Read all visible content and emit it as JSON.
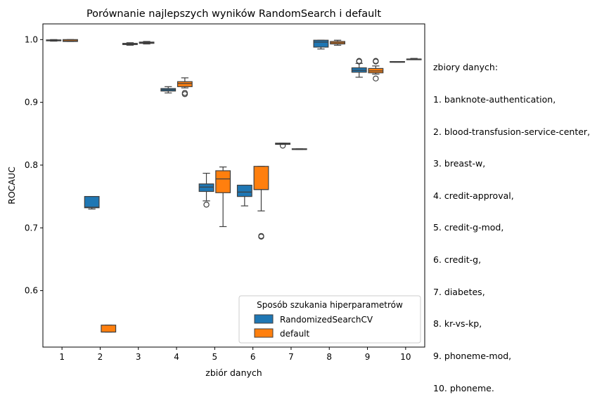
{
  "chart_data": {
    "type": "box",
    "title": "Porównanie najlepszych wyników RandomSearch i default",
    "xlabel": "zbiór danych",
    "ylabel": "ROCAUC",
    "categories": [
      "1",
      "2",
      "3",
      "4",
      "5",
      "6",
      "7",
      "8",
      "9",
      "10"
    ],
    "ylim": [
      0.51,
      1.025
    ],
    "yticks": [
      0.6,
      0.7,
      0.8,
      0.9,
      1.0
    ],
    "ytick_labels": [
      "0.6",
      "0.7",
      "0.8",
      "0.9",
      "1.0"
    ],
    "grid": false,
    "legend": {
      "title": "Sposób szukania hiperparametrów",
      "placement": "lower-right"
    },
    "series": [
      {
        "name": "RandomizedSearchCV",
        "color": "#1f77b4",
        "boxes": [
          {
            "category": "1",
            "whislo": 0.9975,
            "q1": 0.998,
            "median": 0.999,
            "q3": 0.9995,
            "whishi": 1.0,
            "fliers": []
          },
          {
            "category": "2",
            "whislo": 0.73,
            "q1": 0.732,
            "median": 0.733,
            "q3": 0.75,
            "whishi": 0.75,
            "fliers": []
          },
          {
            "category": "3",
            "whislo": 0.991,
            "q1": 0.992,
            "median": 0.993,
            "q3": 0.994,
            "whishi": 0.995,
            "fliers": []
          },
          {
            "category": "4",
            "whislo": 0.915,
            "q1": 0.918,
            "median": 0.92,
            "q3": 0.922,
            "whishi": 0.925,
            "fliers": []
          },
          {
            "category": "5",
            "whislo": 0.743,
            "q1": 0.758,
            "median": 0.765,
            "q3": 0.77,
            "whishi": 0.787,
            "fliers": [
              0.737
            ]
          },
          {
            "category": "6",
            "whislo": 0.735,
            "q1": 0.75,
            "median": 0.757,
            "q3": 0.768,
            "whishi": 0.768,
            "fliers": []
          },
          {
            "category": "7",
            "whislo": 0.833,
            "q1": 0.833,
            "median": 0.834,
            "q3": 0.835,
            "whishi": 0.835,
            "fliers": [
              0.831
            ]
          },
          {
            "category": "8",
            "whislo": 0.985,
            "q1": 0.988,
            "median": 0.996,
            "q3": 0.999,
            "whishi": 0.999,
            "fliers": []
          },
          {
            "category": "9",
            "whislo": 0.94,
            "q1": 0.948,
            "median": 0.951,
            "q3": 0.955,
            "whishi": 0.962,
            "fliers": [
              0.965,
              0.966
            ]
          },
          {
            "category": "10",
            "whislo": 0.964,
            "q1": 0.964,
            "median": 0.964,
            "q3": 0.965,
            "whishi": 0.965,
            "fliers": []
          }
        ]
      },
      {
        "name": "default",
        "color": "#ff7f0e",
        "boxes": [
          {
            "category": "1",
            "whislo": 0.997,
            "q1": 0.997,
            "median": 0.998,
            "q3": 1.0,
            "whishi": 1.0,
            "fliers": []
          },
          {
            "category": "2",
            "whislo": 0.534,
            "q1": 0.534,
            "median": 0.534,
            "q3": 0.545,
            "whishi": 0.545,
            "fliers": []
          },
          {
            "category": "3",
            "whislo": 0.993,
            "q1": 0.994,
            "median": 0.995,
            "q3": 0.996,
            "whishi": 0.997,
            "fliers": []
          },
          {
            "category": "4",
            "whislo": 0.923,
            "q1": 0.925,
            "median": 0.93,
            "q3": 0.933,
            "whishi": 0.939,
            "fliers": [
              0.913,
              0.915
            ]
          },
          {
            "category": "5",
            "whislo": 0.702,
            "q1": 0.756,
            "median": 0.778,
            "q3": 0.791,
            "whishi": 0.797,
            "fliers": []
          },
          {
            "category": "6",
            "whislo": 0.727,
            "q1": 0.761,
            "median": 0.761,
            "q3": 0.798,
            "whishi": 0.798,
            "fliers": [
              0.686,
              0.687
            ]
          },
          {
            "category": "7",
            "whislo": 0.825,
            "q1": 0.825,
            "median": 0.825,
            "q3": 0.826,
            "whishi": 0.826,
            "fliers": []
          },
          {
            "category": "8",
            "whislo": 0.991,
            "q1": 0.993,
            "median": 0.995,
            "q3": 0.997,
            "whishi": 0.999,
            "fliers": []
          },
          {
            "category": "9",
            "whislo": 0.945,
            "q1": 0.947,
            "median": 0.95,
            "q3": 0.954,
            "whishi": 0.958,
            "fliers": [
              0.938,
              0.965,
              0.966
            ]
          },
          {
            "category": "10",
            "whislo": 0.968,
            "q1": 0.969,
            "median": 0.969,
            "q3": 0.969,
            "whishi": 0.97,
            "fliers": []
          }
        ]
      }
    ]
  },
  "side_note": {
    "title": "zbiory danych:",
    "items": [
      "1. banknote-authentication,",
      "2. blood-transfusion-service-center,",
      "3. breast-w,",
      "4. credit-approval,",
      "5. credit-g-mod,",
      "6. credit-g,",
      "7. diabetes,",
      "8. kr-vs-kp,",
      "9. phoneme-mod,",
      "10. phoneme."
    ]
  }
}
